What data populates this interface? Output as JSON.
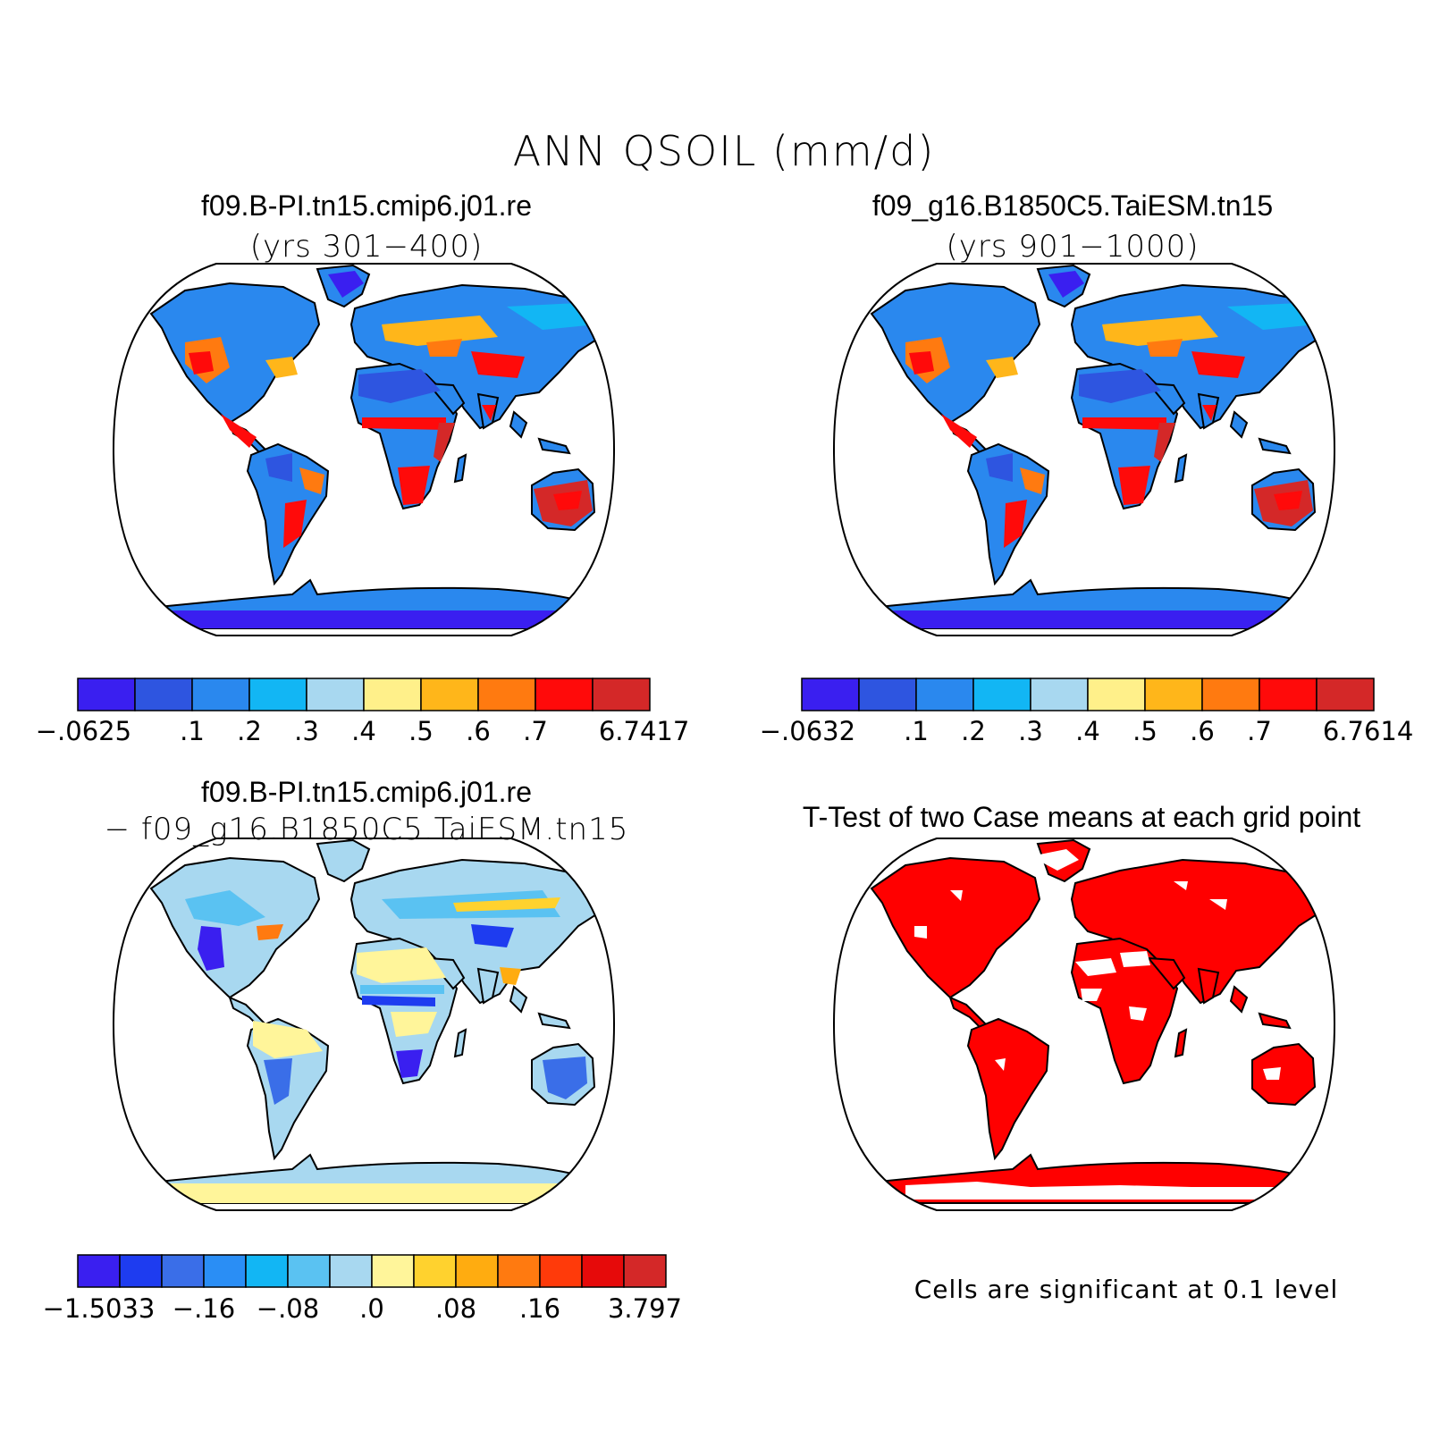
{
  "main_title": "ANN QSOIL (mm/d)",
  "panels": [
    {
      "case_name": "f09.B-PI.tn15.cmip6.j01.re",
      "years": "(yrs 301−400)",
      "colorbar": {
        "colors": [
          "#3a1ff0",
          "#2e55e0",
          "#2a88ee",
          "#12b6f4",
          "#a8d8f0",
          "#fff08a",
          "#ffb61a",
          "#ff7a10",
          "#ff0a0a",
          "#d42828"
        ],
        "tick_labels": [
          "−.0625",
          ".1",
          ".2",
          ".3",
          ".4",
          ".5",
          ".6",
          ".7",
          "6.7417"
        ]
      }
    },
    {
      "case_name": "f09_g16.B1850C5.TaiESM.tn15",
      "years": "(yrs 901−1000)",
      "colorbar": {
        "colors": [
          "#3a1ff0",
          "#2e55e0",
          "#2a88ee",
          "#12b6f4",
          "#a8d8f0",
          "#fff08a",
          "#ffb61a",
          "#ff7a10",
          "#ff0a0a",
          "#d42828"
        ],
        "tick_labels": [
          "−.0632",
          ".1",
          ".2",
          ".3",
          ".4",
          ".5",
          ".6",
          ".7",
          "6.7614"
        ]
      }
    },
    {
      "case_name": "f09.B-PI.tn15.cmip6.j01.re",
      "subtitle": "− f09_g16.B1850C5.TaiESM.tn15",
      "colorbar": {
        "colors": [
          "#3a1ff0",
          "#1e3cf0",
          "#3a6ee8",
          "#2a8ef5",
          "#12b6f4",
          "#5ac2f2",
          "#a8d8f0",
          "#fff59a",
          "#ffd22e",
          "#ffac10",
          "#ff7a10",
          "#ff3a0a",
          "#e60a0a",
          "#d42828"
        ],
        "tick_labels": [
          "−1.5033",
          "−.16",
          "−.08",
          ".0",
          ".08",
          ".16",
          "3.797"
        ]
      }
    },
    {
      "title": "T-Test of two Case means at each grid point",
      "note": "Cells are significant at 0.1 level",
      "fill_color": "#ff0000"
    }
  ]
}
